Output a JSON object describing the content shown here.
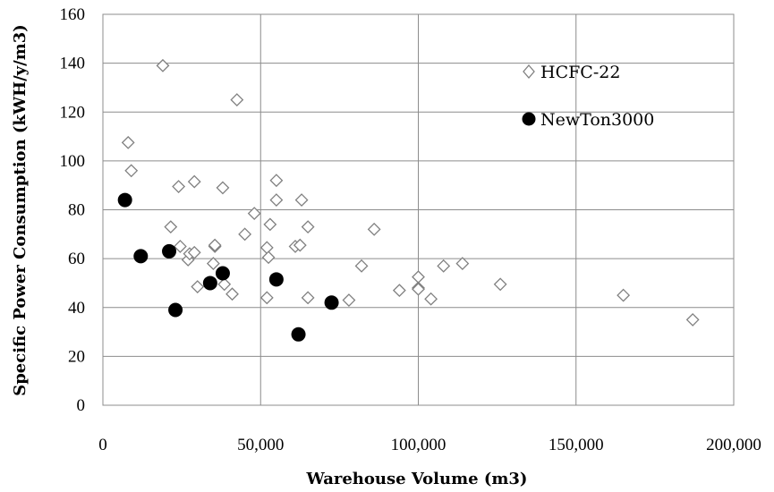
{
  "chart_data": {
    "type": "scatter",
    "title": "",
    "xlabel": "Warehouse Volume (m3)",
    "ylabel": "Specific Power Consumption (kWH/y/m3)",
    "xlim": [
      0,
      200000
    ],
    "ylim": [
      0,
      160
    ],
    "x_ticks": [
      "0",
      "50,000",
      "100,000",
      "150,000",
      "200,000"
    ],
    "y_ticks": [
      "0",
      "20",
      "40",
      "60",
      "80",
      "100",
      "120",
      "140",
      "160"
    ],
    "grid": true,
    "legend_position": "top-right",
    "series": [
      {
        "name": "HCFC-22",
        "marker": "diamond-open",
        "color": "#808080",
        "points": [
          [
            8000,
            107.5
          ],
          [
            9000,
            96
          ],
          [
            19000,
            139
          ],
          [
            21500,
            73
          ],
          [
            24000,
            89.5
          ],
          [
            24500,
            65
          ],
          [
            27000,
            59.5
          ],
          [
            27500,
            62
          ],
          [
            29000,
            91.5
          ],
          [
            29000,
            62.5
          ],
          [
            30000,
            48.5
          ],
          [
            35000,
            58
          ],
          [
            35500,
            65
          ],
          [
            35500,
            65.5
          ],
          [
            38000,
            89
          ],
          [
            38500,
            49.5
          ],
          [
            41000,
            45.5
          ],
          [
            42500,
            125
          ],
          [
            45000,
            70
          ],
          [
            48000,
            78.5
          ],
          [
            52000,
            64.5
          ],
          [
            52000,
            44
          ],
          [
            52500,
            60.5
          ],
          [
            53000,
            74
          ],
          [
            55000,
            92
          ],
          [
            55000,
            84
          ],
          [
            61000,
            65
          ],
          [
            62500,
            65.5
          ],
          [
            63000,
            84
          ],
          [
            65000,
            44
          ],
          [
            65000,
            73
          ],
          [
            78000,
            43
          ],
          [
            82000,
            57
          ],
          [
            86000,
            72
          ],
          [
            94000,
            47
          ],
          [
            100000,
            52.5
          ],
          [
            100000,
            48
          ],
          [
            100000,
            47.5
          ],
          [
            104000,
            43.5
          ],
          [
            108000,
            57
          ],
          [
            114000,
            58
          ],
          [
            126000,
            49.5
          ],
          [
            165000,
            45
          ],
          [
            187000,
            35
          ]
        ]
      },
      {
        "name": "NewTon3000",
        "marker": "circle-filled",
        "color": "#000000",
        "points": [
          [
            7000,
            84
          ],
          [
            12000,
            61
          ],
          [
            21000,
            63
          ],
          [
            23000,
            39
          ],
          [
            34000,
            50
          ],
          [
            38000,
            54
          ],
          [
            55000,
            51.5
          ],
          [
            62000,
            29
          ],
          [
            72500,
            42
          ]
        ]
      }
    ]
  }
}
